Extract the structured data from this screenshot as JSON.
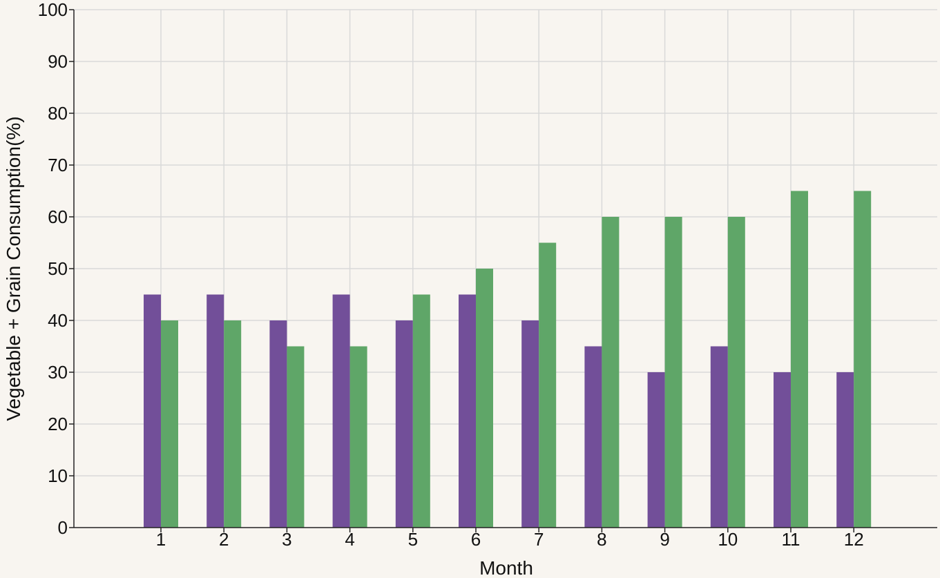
{
  "chart_data": {
    "type": "bar",
    "title": "",
    "xlabel": "Month",
    "ylabel": "Vegetable + Grain Consumption(%)",
    "categories": [
      "1",
      "2",
      "3",
      "4",
      "5",
      "6",
      "7",
      "8",
      "9",
      "10",
      "11",
      "12"
    ],
    "series": [
      {
        "color": "#724f99",
        "values": [
          45,
          45,
          40,
          45,
          40,
          45,
          40,
          35,
          30,
          35,
          30,
          30
        ]
      },
      {
        "color": "#5fa668",
        "values": [
          40,
          40,
          35,
          35,
          45,
          50,
          55,
          60,
          60,
          60,
          65,
          65
        ]
      }
    ],
    "ylim": [
      0,
      100
    ],
    "yticks": [
      "0",
      "10",
      "20",
      "30",
      "40",
      "50",
      "60",
      "70",
      "80",
      "90",
      "100"
    ],
    "grid": true,
    "legend": "none"
  },
  "colors": {
    "background": "#f8f5f0",
    "grid": "#d9d9d9",
    "axis": "#222222"
  }
}
